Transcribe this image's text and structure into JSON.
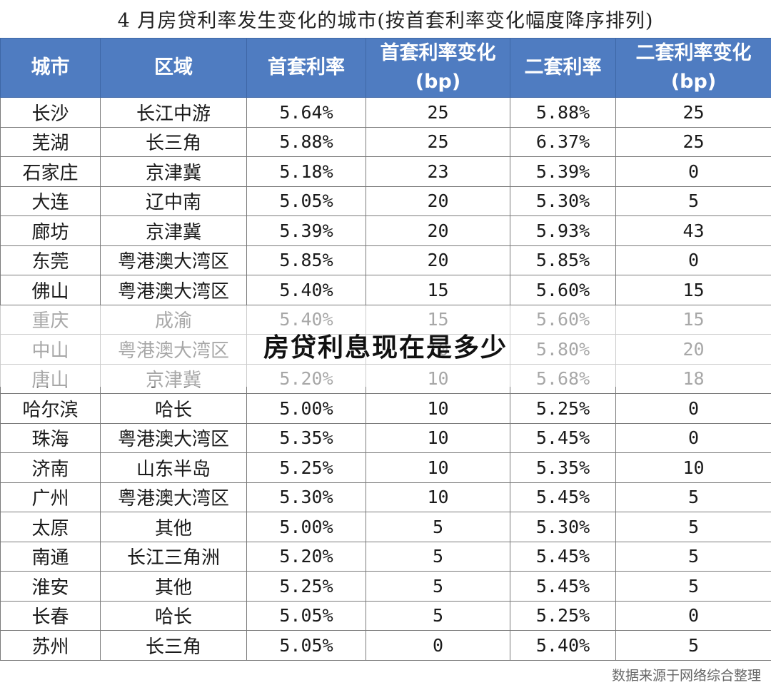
{
  "title": "4 月房贷利率发生变化的城市(按首套利率变化幅度降序排列)",
  "headers": [
    {
      "label": "城市",
      "unit": ""
    },
    {
      "label": "区域",
      "unit": ""
    },
    {
      "label": "首套利率",
      "unit": ""
    },
    {
      "label": "首套利率变化",
      "unit": "(bp)"
    },
    {
      "label": "二套利率",
      "unit": ""
    },
    {
      "label": "二套利率变化",
      "unit": "(bp)"
    }
  ],
  "rows": [
    {
      "city": "长沙",
      "region": "长江中游",
      "first_rate": "5.64%",
      "first_change": "25",
      "second_rate": "5.88%",
      "second_change": "25"
    },
    {
      "city": "芜湖",
      "region": "长三角",
      "first_rate": "5.88%",
      "first_change": "25",
      "second_rate": "6.37%",
      "second_change": "25"
    },
    {
      "city": "石家庄",
      "region": "京津冀",
      "first_rate": "5.18%",
      "first_change": "23",
      "second_rate": "5.39%",
      "second_change": "0"
    },
    {
      "city": "大连",
      "region": "辽中南",
      "first_rate": "5.05%",
      "first_change": "20",
      "second_rate": "5.30%",
      "second_change": "5"
    },
    {
      "city": "廊坊",
      "region": "京津冀",
      "first_rate": "5.39%",
      "first_change": "20",
      "second_rate": "5.93%",
      "second_change": "43"
    },
    {
      "city": "东莞",
      "region": "粤港澳大湾区",
      "first_rate": "5.85%",
      "first_change": "20",
      "second_rate": "5.85%",
      "second_change": "0"
    },
    {
      "city": "佛山",
      "region": "粤港澳大湾区",
      "first_rate": "5.40%",
      "first_change": "15",
      "second_rate": "5.60%",
      "second_change": "15"
    },
    {
      "city": "重庆",
      "region": "成渝",
      "first_rate": "5.40%",
      "first_change": "15",
      "second_rate": "5.60%",
      "second_change": "15"
    },
    {
      "city": "中山",
      "region": "粤港澳大湾区",
      "first_rate": "",
      "first_change": "10",
      "second_rate": "5.80%",
      "second_change": "20"
    },
    {
      "city": "唐山",
      "region": "京津冀",
      "first_rate": "5.20%",
      "first_change": "10",
      "second_rate": "5.68%",
      "second_change": "18"
    },
    {
      "city": "哈尔滨",
      "region": "哈长",
      "first_rate": "5.00%",
      "first_change": "10",
      "second_rate": "5.25%",
      "second_change": "0"
    },
    {
      "city": "珠海",
      "region": "粤港澳大湾区",
      "first_rate": "5.35%",
      "first_change": "10",
      "second_rate": "5.45%",
      "second_change": "0"
    },
    {
      "city": "济南",
      "region": "山东半岛",
      "first_rate": "5.25%",
      "first_change": "10",
      "second_rate": "5.35%",
      "second_change": "10"
    },
    {
      "city": "广州",
      "region": "粤港澳大湾区",
      "first_rate": "5.30%",
      "first_change": "10",
      "second_rate": "5.45%",
      "second_change": "5"
    },
    {
      "city": "太原",
      "region": "其他",
      "first_rate": "5.00%",
      "first_change": "5",
      "second_rate": "5.30%",
      "second_change": "5"
    },
    {
      "city": "南通",
      "region": "长江三角洲",
      "first_rate": "5.20%",
      "first_change": "5",
      "second_rate": "5.45%",
      "second_change": "5"
    },
    {
      "city": "淮安",
      "region": "其他",
      "first_rate": "5.25%",
      "first_change": "5",
      "second_rate": "5.45%",
      "second_change": "5"
    },
    {
      "city": "长春",
      "region": "哈长",
      "first_rate": "5.05%",
      "first_change": "5",
      "second_rate": "5.25%",
      "second_change": "0"
    },
    {
      "city": "苏州",
      "region": "长三角",
      "first_rate": "5.05%",
      "first_change": "0",
      "second_rate": "5.40%",
      "second_change": "5"
    }
  ],
  "overlay_text": "房贷利息现在是多少",
  "source": "数据来源于网络综合整理",
  "colors": {
    "header_bg": "#4f7cc1",
    "header_text": "#ffffff",
    "border": "#7a7a7a"
  }
}
